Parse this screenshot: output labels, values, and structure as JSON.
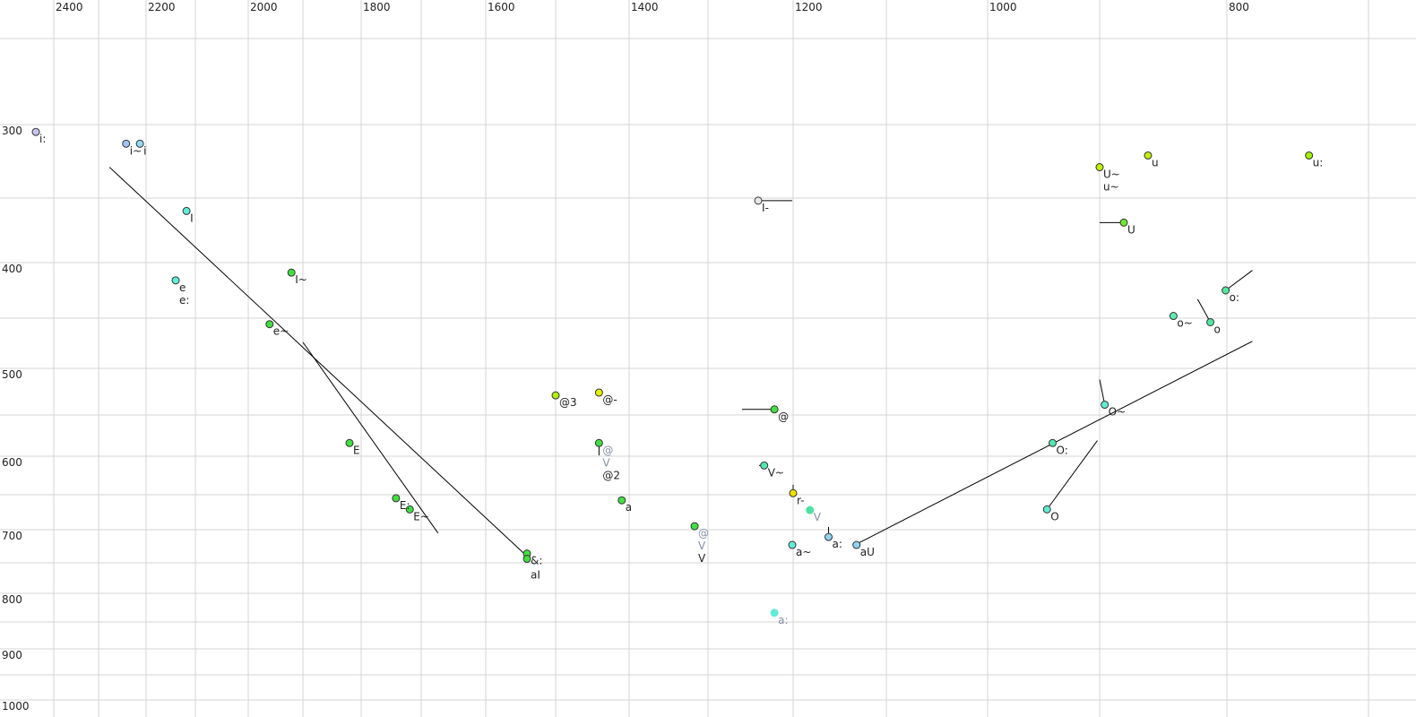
{
  "chart_data": {
    "type": "scatter",
    "title": "",
    "xlabel": "",
    "ylabel": "",
    "x_axis": {
      "reversed": true,
      "position": "top",
      "ticks": [
        2400,
        2200,
        2000,
        1800,
        1600,
        1400,
        1200,
        1000,
        800
      ],
      "range": [
        2440,
        700
      ]
    },
    "y_axis": {
      "reversed": true,
      "position": "left",
      "ticks": [
        300,
        400,
        500,
        600,
        700,
        800,
        900,
        1000
      ],
      "range": [
        250,
        1000
      ]
    },
    "grid": true,
    "points": [
      {
        "f2": 2440,
        "f1": 305,
        "color": "#c8c4f0",
        "labels": [
          {
            "text": "i:"
          }
        ]
      },
      {
        "f2": 2242,
        "f1": 313,
        "color": "#a0c4f4",
        "labels": [
          {
            "text": "i~"
          }
        ]
      },
      {
        "f2": 2213,
        "f1": 313,
        "color": "#90dcf4",
        "labels": [
          {
            "text": "i"
          }
        ]
      },
      {
        "f2": 2118,
        "f1": 360,
        "color": "#60ecd8",
        "labels": [
          {
            "text": "I"
          }
        ]
      },
      {
        "f2": 2140,
        "f1": 416,
        "color": "#60ecd8",
        "labels": [
          {
            "text": "e"
          },
          {
            "text": "e:"
          }
        ]
      },
      {
        "f2": 1921,
        "f1": 409,
        "color": "#40e040",
        "labels": [
          {
            "text": "I~"
          }
        ]
      },
      {
        "f2": 1961,
        "f1": 456,
        "color": "#40e040",
        "labels": [
          {
            "text": "e~"
          }
        ]
      },
      {
        "f2": 1820,
        "f1": 584,
        "color": "#40e040",
        "labels": [
          {
            "text": "E"
          }
        ]
      },
      {
        "f2": 1742,
        "f1": 655,
        "color": "#40e040",
        "labels": [
          {
            "text": "E:"
          }
        ]
      },
      {
        "f2": 1719,
        "f1": 671,
        "color": "#40e040",
        "labels": [
          {
            "text": "E~"
          }
        ]
      },
      {
        "f2": 1541,
        "f1": 736,
        "color": "#40e040",
        "labels": [
          {
            "text": "&:"
          }
        ]
      },
      {
        "f2": 1541,
        "f1": 744,
        "color": "#40e040",
        "labels": [
          {
            "text": "aI"
          }
        ]
      },
      {
        "f2": 1500,
        "f1": 529,
        "color": "#b0f000",
        "labels": [
          {
            "text": "@3"
          }
        ]
      },
      {
        "f2": 1441,
        "f1": 526,
        "color": "#e0f000",
        "labels": [
          {
            "text": "@-"
          }
        ]
      },
      {
        "f2": 1441,
        "f1": 584,
        "color": "#40e040",
        "labels": [
          {
            "text": "@",
            "gray": true
          },
          {
            "text": "V",
            "gray": true
          },
          {
            "text": "@2"
          }
        ],
        "trail": [
          1441,
          599
        ]
      },
      {
        "f2": 1410,
        "f1": 658,
        "color": "#40e040",
        "labels": [
          {
            "text": "a"
          }
        ]
      },
      {
        "f2": 1317,
        "f1": 695,
        "color": "#40e040",
        "labels": [
          {
            "text": "@",
            "gray": true
          },
          {
            "text": "V",
            "gray": true
          },
          {
            "text": "V"
          }
        ]
      },
      {
        "f2": 1222,
        "f1": 544,
        "color": "#40e040",
        "labels": [
          {
            "text": "@"
          }
        ],
        "trail": [
          1260,
          544
        ]
      },
      {
        "f2": 1234,
        "f1": 612,
        "color": "#50e8b0",
        "labels": [
          {
            "text": "V~"
          }
        ],
        "trail": [
          1240,
          612
        ]
      },
      {
        "f2": 1200,
        "f1": 648,
        "color": "#f0e000",
        "labels": [
          {
            "text": "r-"
          }
        ],
        "trail": [
          1200,
          637
        ]
      },
      {
        "f2": 1182,
        "f1": 672,
        "color": "#50e0a0",
        "labels": [
          {
            "text": "V",
            "gray": true
          }
        ],
        "outline": "none"
      },
      {
        "f2": 1162,
        "f1": 711,
        "color": "#90d0f4",
        "labels": [
          {
            "text": "a:"
          }
        ],
        "trail": [
          1162,
          696
        ]
      },
      {
        "f2": 1201,
        "f1": 723,
        "color": "#60ecd8",
        "labels": [
          {
            "text": "a~"
          }
        ]
      },
      {
        "f2": 1222,
        "f1": 834,
        "color": "#60ecd8",
        "labels": [
          {
            "text": "a:",
            "gray": true
          }
        ],
        "outline": "none"
      },
      {
        "f2": 1132,
        "f1": 723,
        "color": "#90d0f4",
        "labels": [
          {
            "text": "aU"
          }
        ]
      },
      {
        "f2": 1241,
        "f1": 352,
        "color": "#e8e8e8",
        "labels": [
          {
            "text": "I-"
          }
        ],
        "trail": [
          1201,
          352
        ]
      },
      {
        "f2": 900,
        "f1": 329,
        "color": "#c0f000",
        "labels": [
          {
            "text": "U~"
          },
          {
            "text": "u~"
          }
        ]
      },
      {
        "f2": 862,
        "f1": 321,
        "color": "#c0f000",
        "labels": [
          {
            "text": "u"
          }
        ]
      },
      {
        "f2": 742,
        "f1": 321,
        "color": "#a0f000",
        "labels": [
          {
            "text": "u:"
          }
        ]
      },
      {
        "f2": 881,
        "f1": 369,
        "color": "#70e830",
        "labels": [
          {
            "text": "U"
          }
        ],
        "trail": [
          900,
          369
        ]
      },
      {
        "f2": 801,
        "f1": 425,
        "color": "#50e8a0",
        "labels": [
          {
            "text": "o:"
          }
        ],
        "trail": [
          782,
          407
        ]
      },
      {
        "f2": 842,
        "f1": 448,
        "color": "#60ecb0",
        "labels": [
          {
            "text": "o~"
          }
        ]
      },
      {
        "f2": 813,
        "f1": 454,
        "color": "#50e8a0",
        "labels": [
          {
            "text": "o"
          }
        ],
        "trail": [
          823,
          433
        ]
      },
      {
        "f2": 896,
        "f1": 539,
        "color": "#60ecd0",
        "labels": [
          {
            "text": "O~"
          }
        ],
        "trail": [
          900,
          512
        ]
      },
      {
        "f2": 942,
        "f1": 584,
        "color": "#50e8b0",
        "labels": [
          {
            "text": "O:"
          }
        ]
      },
      {
        "f2": 947,
        "f1": 671,
        "color": "#60ecd0",
        "labels": [
          {
            "text": "O"
          }
        ],
        "trail": [
          902,
          581
        ]
      }
    ],
    "lines": [
      {
        "from": [
          2277,
          329
        ],
        "to": [
          1541,
          740
        ]
      },
      {
        "from": [
          1900,
          474
        ],
        "to": [
          1674,
          705
        ]
      },
      {
        "from": [
          1131,
          721
        ],
        "to": [
          782,
          473
        ]
      }
    ]
  }
}
